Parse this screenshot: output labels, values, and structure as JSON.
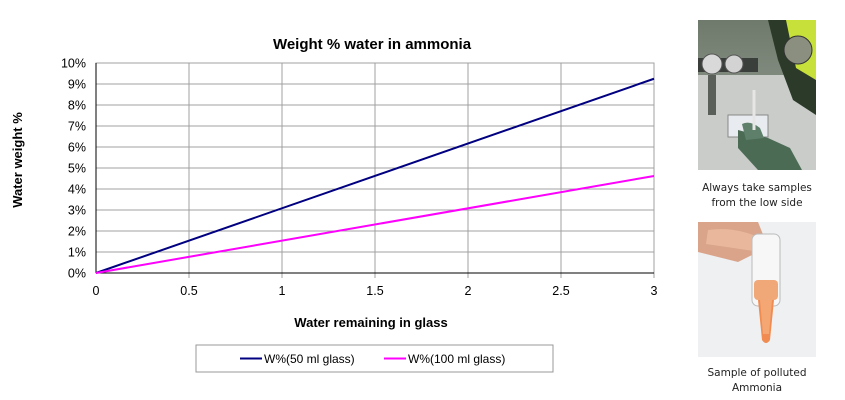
{
  "chart_data": {
    "type": "line",
    "title": "Weight % water in ammonia",
    "xlabel": "Water remaining in glass",
    "ylabel": "Water weight %",
    "xlim": [
      0,
      3
    ],
    "ylim": [
      0,
      10
    ],
    "x_ticks": [
      "0",
      "0.5",
      "1",
      "1.5",
      "2",
      "2.5",
      "3"
    ],
    "y_ticks": [
      "0%",
      "1%",
      "2%",
      "3%",
      "4%",
      "5%",
      "6%",
      "7%",
      "8%",
      "9%",
      "10%"
    ],
    "grid": true,
    "legend": "bottom",
    "series": [
      {
        "name": "W%(50 ml glass)",
        "color": "#000080",
        "x": [
          0,
          3
        ],
        "y": [
          0,
          9.25
        ]
      },
      {
        "name": "W%(100 ml glass)",
        "color": "#ff00ff",
        "x": [
          0,
          3
        ],
        "y": [
          0,
          4.62
        ]
      }
    ]
  },
  "photos": [
    {
      "icon": "ammonia-sampling-photo",
      "caption_line1": "Always take samples",
      "caption_line2": "from the low side"
    },
    {
      "icon": "polluted-ammonia-sample-photo",
      "caption_line1": "Sample of polluted",
      "caption_line2": "Ammonia"
    }
  ]
}
